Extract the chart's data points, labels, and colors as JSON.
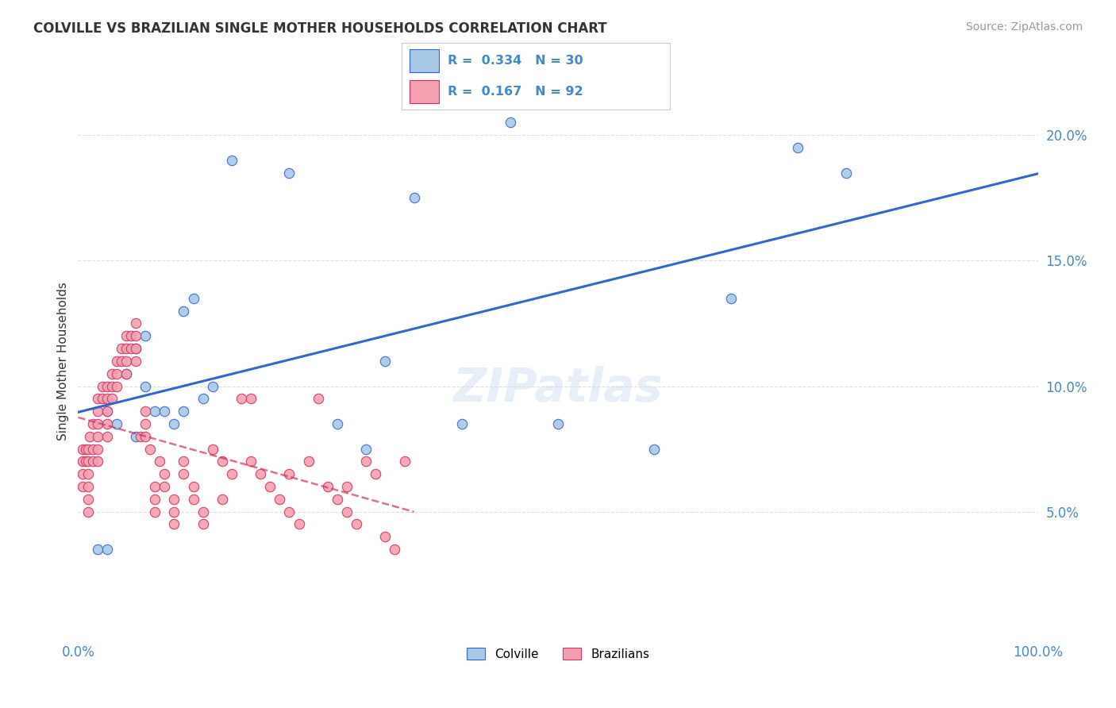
{
  "title": "COLVILLE VS BRAZILIAN SINGLE MOTHER HOUSEHOLDS CORRELATION CHART",
  "source": "Source: ZipAtlas.com",
  "ylabel": "Single Mother Households",
  "colville_R": 0.334,
  "colville_N": 30,
  "brazilians_R": 0.167,
  "brazilians_N": 92,
  "colville_color": "#a8c8e8",
  "colville_line_color": "#3366cc",
  "brazilians_color": "#f5a0b0",
  "brazilians_line_color": "#cc3366",
  "background_color": "#ffffff",
  "grid_color": "#dddddd",
  "title_color": "#333333",
  "axis_label_color": "#4488cc",
  "legend_R_N_color": "#4488cc",
  "colville_x": [
    2,
    3,
    3,
    4,
    5,
    6,
    6,
    7,
    7,
    8,
    9,
    10,
    11,
    11,
    12,
    13,
    14,
    16,
    22,
    27,
    30,
    32,
    35,
    40,
    45,
    50,
    60,
    68,
    75,
    80
  ],
  "colville_y": [
    3.5,
    9.0,
    3.5,
    8.5,
    10.5,
    11.5,
    8.0,
    12.0,
    10.0,
    9.0,
    9.0,
    8.5,
    13.0,
    9.0,
    13.5,
    9.5,
    10.0,
    19.0,
    18.5,
    8.5,
    7.5,
    11.0,
    17.5,
    8.5,
    20.5,
    8.5,
    7.5,
    13.5,
    19.5,
    18.5
  ],
  "brazilians_x": [
    0.5,
    0.5,
    0.5,
    0.5,
    0.8,
    0.8,
    1.0,
    1.0,
    1.0,
    1.0,
    1.0,
    1.0,
    1.2,
    1.5,
    1.5,
    1.5,
    2.0,
    2.0,
    2.0,
    2.0,
    2.0,
    2.0,
    2.5,
    2.5,
    3.0,
    3.0,
    3.0,
    3.0,
    3.0,
    3.5,
    3.5,
    3.5,
    4.0,
    4.0,
    4.0,
    4.5,
    4.5,
    5.0,
    5.0,
    5.0,
    5.0,
    5.5,
    5.5,
    6.0,
    6.0,
    6.0,
    6.0,
    6.5,
    7.0,
    7.0,
    7.0,
    7.5,
    8.0,
    8.0,
    8.0,
    8.5,
    9.0,
    9.0,
    10.0,
    10.0,
    10.0,
    11.0,
    11.0,
    12.0,
    12.0,
    13.0,
    13.0,
    14.0,
    15.0,
    16.0,
    17.0,
    18.0,
    19.0,
    20.0,
    21.0,
    22.0,
    23.0,
    24.0,
    25.0,
    26.0,
    27.0,
    28.0,
    29.0,
    30.0,
    31.0,
    32.0,
    33.0,
    34.0,
    22.0,
    28.0,
    15.0,
    18.0
  ],
  "brazilians_y": [
    7.5,
    7.0,
    6.5,
    6.0,
    7.5,
    7.0,
    7.5,
    7.0,
    6.5,
    6.0,
    5.5,
    5.0,
    8.0,
    8.5,
    7.5,
    7.0,
    9.5,
    9.0,
    8.5,
    8.0,
    7.5,
    7.0,
    10.0,
    9.5,
    10.0,
    9.5,
    9.0,
    8.5,
    8.0,
    10.5,
    10.0,
    9.5,
    11.0,
    10.5,
    10.0,
    11.5,
    11.0,
    12.0,
    11.5,
    11.0,
    10.5,
    12.0,
    11.5,
    12.5,
    12.0,
    11.5,
    11.0,
    8.0,
    9.0,
    8.5,
    8.0,
    7.5,
    6.0,
    5.5,
    5.0,
    7.0,
    6.5,
    6.0,
    5.5,
    5.0,
    4.5,
    7.0,
    6.5,
    6.0,
    5.5,
    5.0,
    4.5,
    7.5,
    7.0,
    6.5,
    9.5,
    7.0,
    6.5,
    6.0,
    5.5,
    5.0,
    4.5,
    7.0,
    9.5,
    6.0,
    5.5,
    5.0,
    4.5,
    7.0,
    6.5,
    4.0,
    3.5,
    7.0,
    6.5,
    6.0,
    5.5,
    9.5
  ]
}
